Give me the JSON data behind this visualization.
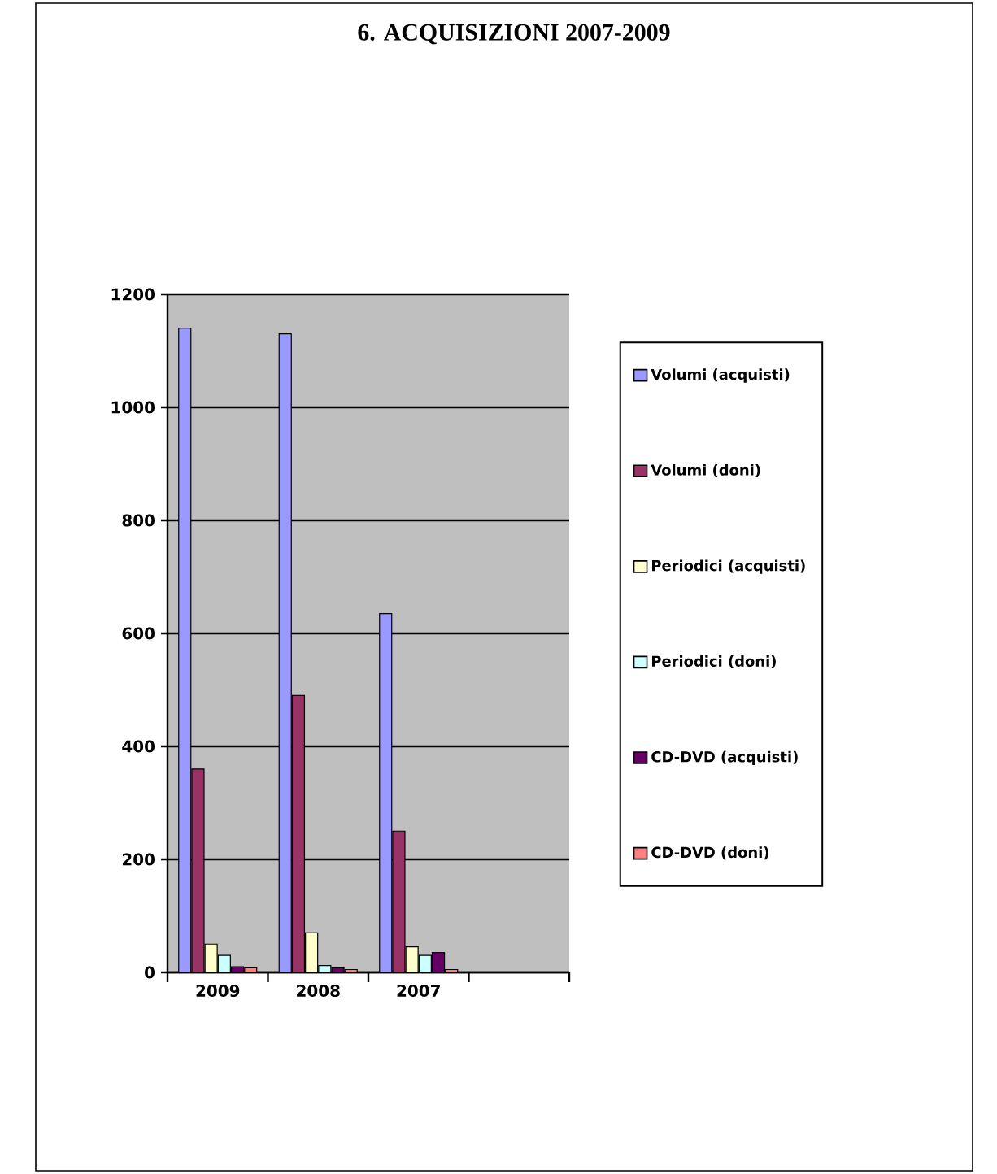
{
  "chart_data": {
    "type": "bar",
    "title": "6.    ACQUISIZIONI 2007-2009",
    "categories": [
      "2009",
      "2008",
      "2007",
      null
    ],
    "series": [
      {
        "name": "Volumi (acquisti)",
        "color": "#9999ff",
        "values": [
          1140,
          1130,
          635,
          null
        ]
      },
      {
        "name": "Volumi (doni)",
        "color": "#993366",
        "values": [
          360,
          490,
          250,
          null
        ]
      },
      {
        "name": "Periodici (acquisti)",
        "color": "#ffffcc",
        "values": [
          50,
          70,
          45,
          null
        ]
      },
      {
        "name": "Periodici (doni)",
        "color": "#ccffff",
        "values": [
          30,
          12,
          30,
          null
        ]
      },
      {
        "name": "CD-DVD (acquisti)",
        "color": "#660066",
        "values": [
          10,
          8,
          35,
          null
        ]
      },
      {
        "name": "CD-DVD (doni)",
        "color": "#ff8080",
        "values": [
          8,
          5,
          5,
          null
        ]
      }
    ],
    "ylim": [
      0,
      1200
    ],
    "yticks": [
      0,
      200,
      400,
      600,
      800,
      1000,
      1200
    ],
    "grid": "y",
    "legend": "right"
  }
}
